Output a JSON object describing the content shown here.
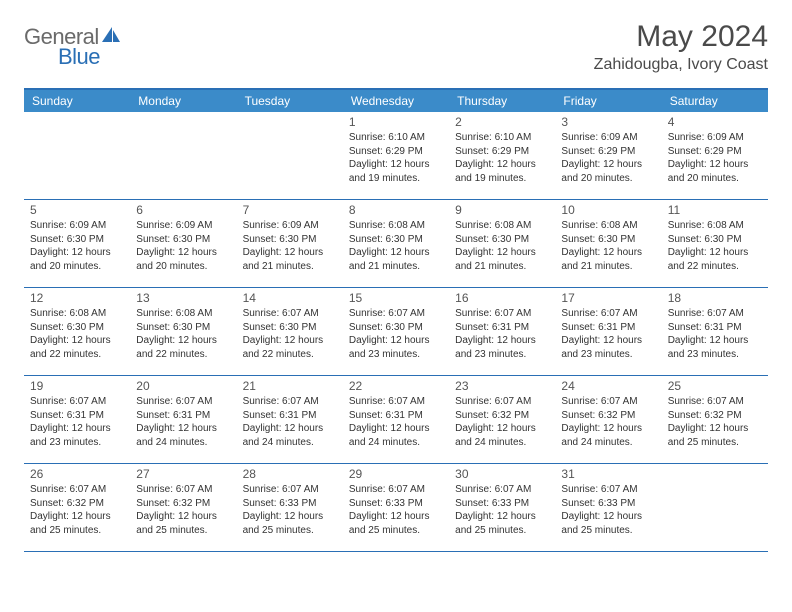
{
  "logo": {
    "text1": "General",
    "text2": "Blue"
  },
  "title": "May 2024",
  "location": "Zahidougba, Ivory Coast",
  "colors": {
    "header_bar": "#3b8bc9",
    "border": "#2a6fb5",
    "text_gray": "#6a6a6a",
    "logo_blue": "#2a6fb5"
  },
  "weekdays": [
    "Sunday",
    "Monday",
    "Tuesday",
    "Wednesday",
    "Thursday",
    "Friday",
    "Saturday"
  ],
  "weeks": [
    [
      null,
      null,
      null,
      {
        "n": "1",
        "sr": "6:10 AM",
        "ss": "6:29 PM",
        "dl": "12 hours and 19 minutes."
      },
      {
        "n": "2",
        "sr": "6:10 AM",
        "ss": "6:29 PM",
        "dl": "12 hours and 19 minutes."
      },
      {
        "n": "3",
        "sr": "6:09 AM",
        "ss": "6:29 PM",
        "dl": "12 hours and 20 minutes."
      },
      {
        "n": "4",
        "sr": "6:09 AM",
        "ss": "6:29 PM",
        "dl": "12 hours and 20 minutes."
      }
    ],
    [
      {
        "n": "5",
        "sr": "6:09 AM",
        "ss": "6:30 PM",
        "dl": "12 hours and 20 minutes."
      },
      {
        "n": "6",
        "sr": "6:09 AM",
        "ss": "6:30 PM",
        "dl": "12 hours and 20 minutes."
      },
      {
        "n": "7",
        "sr": "6:09 AM",
        "ss": "6:30 PM",
        "dl": "12 hours and 21 minutes."
      },
      {
        "n": "8",
        "sr": "6:08 AM",
        "ss": "6:30 PM",
        "dl": "12 hours and 21 minutes."
      },
      {
        "n": "9",
        "sr": "6:08 AM",
        "ss": "6:30 PM",
        "dl": "12 hours and 21 minutes."
      },
      {
        "n": "10",
        "sr": "6:08 AM",
        "ss": "6:30 PM",
        "dl": "12 hours and 21 minutes."
      },
      {
        "n": "11",
        "sr": "6:08 AM",
        "ss": "6:30 PM",
        "dl": "12 hours and 22 minutes."
      }
    ],
    [
      {
        "n": "12",
        "sr": "6:08 AM",
        "ss": "6:30 PM",
        "dl": "12 hours and 22 minutes."
      },
      {
        "n": "13",
        "sr": "6:08 AM",
        "ss": "6:30 PM",
        "dl": "12 hours and 22 minutes."
      },
      {
        "n": "14",
        "sr": "6:07 AM",
        "ss": "6:30 PM",
        "dl": "12 hours and 22 minutes."
      },
      {
        "n": "15",
        "sr": "6:07 AM",
        "ss": "6:30 PM",
        "dl": "12 hours and 23 minutes."
      },
      {
        "n": "16",
        "sr": "6:07 AM",
        "ss": "6:31 PM",
        "dl": "12 hours and 23 minutes."
      },
      {
        "n": "17",
        "sr": "6:07 AM",
        "ss": "6:31 PM",
        "dl": "12 hours and 23 minutes."
      },
      {
        "n": "18",
        "sr": "6:07 AM",
        "ss": "6:31 PM",
        "dl": "12 hours and 23 minutes."
      }
    ],
    [
      {
        "n": "19",
        "sr": "6:07 AM",
        "ss": "6:31 PM",
        "dl": "12 hours and 23 minutes."
      },
      {
        "n": "20",
        "sr": "6:07 AM",
        "ss": "6:31 PM",
        "dl": "12 hours and 24 minutes."
      },
      {
        "n": "21",
        "sr": "6:07 AM",
        "ss": "6:31 PM",
        "dl": "12 hours and 24 minutes."
      },
      {
        "n": "22",
        "sr": "6:07 AM",
        "ss": "6:31 PM",
        "dl": "12 hours and 24 minutes."
      },
      {
        "n": "23",
        "sr": "6:07 AM",
        "ss": "6:32 PM",
        "dl": "12 hours and 24 minutes."
      },
      {
        "n": "24",
        "sr": "6:07 AM",
        "ss": "6:32 PM",
        "dl": "12 hours and 24 minutes."
      },
      {
        "n": "25",
        "sr": "6:07 AM",
        "ss": "6:32 PM",
        "dl": "12 hours and 25 minutes."
      }
    ],
    [
      {
        "n": "26",
        "sr": "6:07 AM",
        "ss": "6:32 PM",
        "dl": "12 hours and 25 minutes."
      },
      {
        "n": "27",
        "sr": "6:07 AM",
        "ss": "6:32 PM",
        "dl": "12 hours and 25 minutes."
      },
      {
        "n": "28",
        "sr": "6:07 AM",
        "ss": "6:33 PM",
        "dl": "12 hours and 25 minutes."
      },
      {
        "n": "29",
        "sr": "6:07 AM",
        "ss": "6:33 PM",
        "dl": "12 hours and 25 minutes."
      },
      {
        "n": "30",
        "sr": "6:07 AM",
        "ss": "6:33 PM",
        "dl": "12 hours and 25 minutes."
      },
      {
        "n": "31",
        "sr": "6:07 AM",
        "ss": "6:33 PM",
        "dl": "12 hours and 25 minutes."
      },
      null
    ]
  ],
  "labels": {
    "sunrise": "Sunrise:",
    "sunset": "Sunset:",
    "daylight": "Daylight:"
  }
}
